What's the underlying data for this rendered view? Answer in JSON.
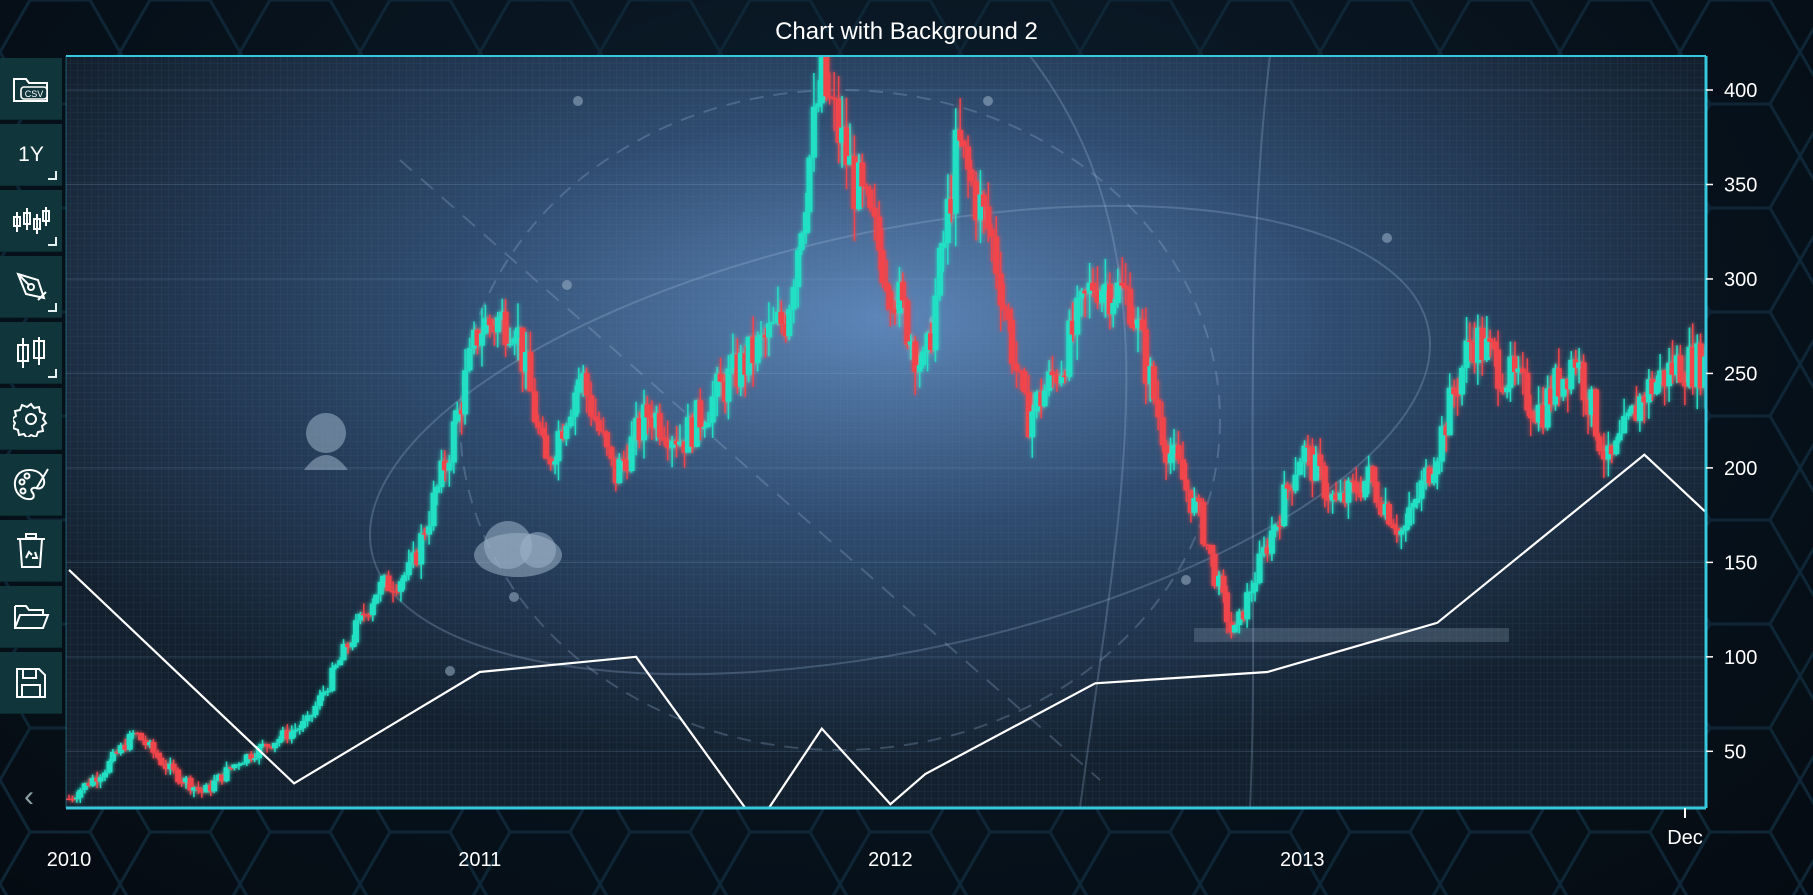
{
  "title": "Chart with Background 2",
  "toolbar": [
    {
      "name": "open-csv-button",
      "icon": "folder-csv-icon",
      "label": "CSV"
    },
    {
      "name": "range-1y-button",
      "icon": "",
      "label": "1Y"
    },
    {
      "name": "chart-type-button",
      "icon": "ohlc-icon",
      "label": ""
    },
    {
      "name": "draw-tool-button",
      "icon": "pen-icon",
      "label": ""
    },
    {
      "name": "series-type-button",
      "icon": "candlestick-icon",
      "label": ""
    },
    {
      "name": "settings-button",
      "icon": "gear-icon",
      "label": ""
    },
    {
      "name": "theme-button",
      "icon": "palette-icon",
      "label": ""
    },
    {
      "name": "clear-button",
      "icon": "recycle-bin-icon",
      "label": ""
    },
    {
      "name": "open-button",
      "icon": "folder-open-icon",
      "label": ""
    },
    {
      "name": "save-button",
      "icon": "floppy-disk-icon",
      "label": ""
    }
  ],
  "colors": {
    "up": "#22e0c4",
    "down": "#f0444c",
    "axis": "#36c8dc",
    "line": "#ffffff"
  },
  "chart_data": {
    "type": "candlestick",
    "title": "Chart with Background 2",
    "x_tick_labels": [
      "2010",
      "2011",
      "2012",
      "2013",
      "Dec"
    ],
    "y_tick_labels": [
      "50",
      "100",
      "150",
      "200",
      "250",
      "300",
      "350",
      "400"
    ],
    "ylim": [
      20,
      418
    ],
    "xlim": [
      "2010-01-01",
      "2013-12-31"
    ],
    "grid": true,
    "candles_close_path": [
      [
        "2010-01-01",
        25
      ],
      [
        "2010-02-01",
        40
      ],
      [
        "2010-03-01",
        60
      ],
      [
        "2010-04-01",
        40
      ],
      [
        "2010-05-01",
        28
      ],
      [
        "2010-06-01",
        45
      ],
      [
        "2010-07-01",
        55
      ],
      [
        "2010-08-01",
        65
      ],
      [
        "2010-09-01",
        100
      ],
      [
        "2010-10-01",
        135
      ],
      [
        "2010-11-01",
        145
      ],
      [
        "2010-12-01",
        200
      ],
      [
        "2011-01-01",
        275
      ],
      [
        "2011-02-01",
        280
      ],
      [
        "2011-03-01",
        200
      ],
      [
        "2011-04-01",
        250
      ],
      [
        "2011-05-01",
        195
      ],
      [
        "2011-06-01",
        230
      ],
      [
        "2011-07-01",
        215
      ],
      [
        "2011-08-01",
        240
      ],
      [
        "2011-09-01",
        260
      ],
      [
        "2011-10-01",
        280
      ],
      [
        "2011-11-01",
        405
      ],
      [
        "2011-12-01",
        350
      ],
      [
        "2012-01-01",
        300
      ],
      [
        "2012-02-01",
        250
      ],
      [
        "2012-03-01",
        370
      ],
      [
        "2012-04-01",
        320
      ],
      [
        "2012-05-01",
        225
      ],
      [
        "2012-06-01",
        255
      ],
      [
        "2012-07-01",
        300
      ],
      [
        "2012-08-01",
        290
      ],
      [
        "2012-09-01",
        215
      ],
      [
        "2012-10-01",
        175
      ],
      [
        "2012-11-01",
        110
      ],
      [
        "2013-01-01",
        210
      ],
      [
        "2013-02-01",
        180
      ],
      [
        "2013-03-01",
        195
      ],
      [
        "2013-04-01",
        165
      ],
      [
        "2013-05-01",
        210
      ],
      [
        "2013-06-01",
        270
      ],
      [
        "2013-07-01",
        250
      ],
      [
        "2013-08-01",
        230
      ],
      [
        "2013-09-01",
        260
      ],
      [
        "2013-10-01",
        200
      ],
      [
        "2013-11-01",
        240
      ],
      [
        "2013-12-01",
        255
      ]
    ],
    "overlay_line": [
      [
        "2010-01-01",
        146
      ],
      [
        "2010-07-20",
        33
      ],
      [
        "2011-01-01",
        92
      ],
      [
        "2011-05-20",
        100
      ],
      [
        "2011-08-25",
        20
      ],
      [
        "2011-09-15",
        20
      ],
      [
        "2011-11-01",
        62
      ],
      [
        "2012-01-01",
        22
      ],
      [
        "2012-02-01",
        38
      ],
      [
        "2012-07-01",
        86
      ],
      [
        "2012-12-01",
        92
      ],
      [
        "2013-05-01",
        118
      ],
      [
        "2013-11-01",
        207
      ],
      [
        "2014-01-01",
        173
      ]
    ]
  }
}
